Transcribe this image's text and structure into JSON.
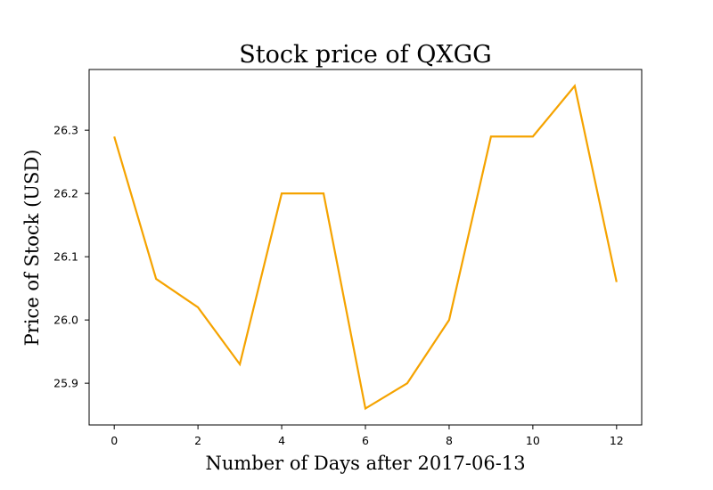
{
  "chart_data": {
    "type": "line",
    "title": "Stock price of QXGG",
    "xlabel": "Number of Days after 2017-06-13",
    "ylabel": "Price of Stock (USD)",
    "x": [
      0,
      1,
      2,
      3,
      4,
      5,
      6,
      7,
      8,
      9,
      10,
      11,
      12
    ],
    "series": [
      {
        "values": [
          26.29,
          26.065,
          26.02,
          25.93,
          26.2,
          26.2,
          25.86,
          25.9,
          26.0,
          26.29,
          26.29,
          26.37,
          26.06
        ],
        "color": "#f5a300"
      }
    ],
    "xlim": [
      -0.6,
      12.6
    ],
    "ylim": [
      25.834,
      26.396
    ],
    "xticks": [
      0,
      2,
      4,
      6,
      8,
      10,
      12
    ],
    "xtick_labels": [
      "0",
      "2",
      "4",
      "6",
      "8",
      "10",
      "12"
    ],
    "yticks": [
      25.9,
      26.0,
      26.1,
      26.2,
      26.3
    ],
    "ytick_labels": [
      "25.9",
      "26.0",
      "26.1",
      "26.2",
      "26.3"
    ],
    "grid": false,
    "legend": "none"
  }
}
